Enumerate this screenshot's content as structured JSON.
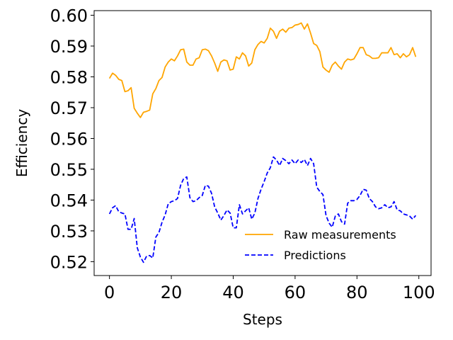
{
  "chart_data": {
    "type": "line",
    "title": "",
    "xlabel": "Steps",
    "ylabel": "Efficiency",
    "xlim": [
      -4.95,
      103.95
    ],
    "ylim": [
      0.5155,
      0.6015
    ],
    "xticks": [
      0,
      20,
      40,
      60,
      80,
      100
    ],
    "yticks": [
      0.52,
      0.53,
      0.54,
      0.55,
      0.56,
      0.57,
      0.58,
      0.59,
      0.6
    ],
    "xtick_labels": [
      "0",
      "20",
      "40",
      "60",
      "80",
      "100"
    ],
    "ytick_labels": [
      "0.52",
      "0.53",
      "0.54",
      "0.55",
      "0.56",
      "0.57",
      "0.58",
      "0.59",
      "0.60"
    ],
    "grid": false,
    "legend_position": "lower-right",
    "x": [
      0,
      1,
      2,
      3,
      4,
      5,
      6,
      7,
      8,
      9,
      10,
      11,
      12,
      13,
      14,
      15,
      16,
      17,
      18,
      19,
      20,
      21,
      22,
      23,
      24,
      25,
      26,
      27,
      28,
      29,
      30,
      31,
      32,
      33,
      34,
      35,
      36,
      37,
      38,
      39,
      40,
      41,
      42,
      43,
      44,
      45,
      46,
      47,
      48,
      49,
      50,
      51,
      52,
      53,
      54,
      55,
      56,
      57,
      58,
      59,
      60,
      61,
      62,
      63,
      64,
      65,
      66,
      67,
      68,
      69,
      70,
      71,
      72,
      73,
      74,
      75,
      76,
      77,
      78,
      79,
      80,
      81,
      82,
      83,
      84,
      85,
      86,
      87,
      88,
      89,
      90,
      91,
      92,
      93,
      94,
      95,
      96,
      97,
      98,
      99
    ],
    "series": [
      {
        "name": "Raw measurements",
        "color": "#FFA500",
        "style": "solid",
        "values": [
          0.5795,
          0.5812,
          0.5805,
          0.5792,
          0.5788,
          0.5752,
          0.5755,
          0.5765,
          0.5698,
          0.5682,
          0.5668,
          0.5685,
          0.5688,
          0.5692,
          0.5745,
          0.5762,
          0.5788,
          0.5798,
          0.5832,
          0.5848,
          0.5858,
          0.5852,
          0.5868,
          0.5888,
          0.589,
          0.5848,
          0.5838,
          0.5838,
          0.5858,
          0.5862,
          0.5888,
          0.589,
          0.5885,
          0.5868,
          0.5845,
          0.5818,
          0.5848,
          0.5855,
          0.5852,
          0.5822,
          0.5825,
          0.5865,
          0.5858,
          0.5878,
          0.5868,
          0.5835,
          0.5845,
          0.5888,
          0.5905,
          0.5915,
          0.591,
          0.5925,
          0.5958,
          0.5948,
          0.5925,
          0.5948,
          0.5955,
          0.5945,
          0.5958,
          0.596,
          0.5968,
          0.597,
          0.5975,
          0.5955,
          0.5972,
          0.5942,
          0.5908,
          0.5902,
          0.5882,
          0.5832,
          0.5822,
          0.5815,
          0.5838,
          0.5848,
          0.5835,
          0.5825,
          0.5848,
          0.5858,
          0.5855,
          0.5858,
          0.5875,
          0.5895,
          0.5895,
          0.5872,
          0.5868,
          0.586,
          0.586,
          0.5862,
          0.5878,
          0.5878,
          0.5878,
          0.5895,
          0.5872,
          0.5875,
          0.5862,
          0.5875,
          0.5865,
          0.5872,
          0.5895,
          0.5865
        ]
      },
      {
        "name": "Predictions",
        "color": "#0000FF",
        "style": "dashed",
        "values": [
          0.5355,
          0.5375,
          0.5382,
          0.5362,
          0.5358,
          0.5355,
          0.5305,
          0.5305,
          0.534,
          0.5245,
          0.5215,
          0.5198,
          0.5218,
          0.522,
          0.5212,
          0.528,
          0.5295,
          0.5328,
          0.5352,
          0.5388,
          0.5395,
          0.5398,
          0.5405,
          0.5448,
          0.547,
          0.5475,
          0.5408,
          0.5395,
          0.5398,
          0.5408,
          0.5415,
          0.5448,
          0.5445,
          0.5422,
          0.5378,
          0.5358,
          0.5335,
          0.535,
          0.5368,
          0.5358,
          0.531,
          0.531,
          0.5385,
          0.5355,
          0.5365,
          0.5375,
          0.5338,
          0.5358,
          0.5405,
          0.5435,
          0.546,
          0.5488,
          0.5505,
          0.554,
          0.553,
          0.5512,
          0.5535,
          0.5528,
          0.5518,
          0.553,
          0.5518,
          0.553,
          0.5522,
          0.5532,
          0.5512,
          0.5535,
          0.5518,
          0.5442,
          0.5428,
          0.5418,
          0.535,
          0.5325,
          0.5312,
          0.5348,
          0.5355,
          0.533,
          0.5322,
          0.539,
          0.5398,
          0.5398,
          0.5402,
          0.5415,
          0.5435,
          0.5432,
          0.5405,
          0.5395,
          0.5378,
          0.5372,
          0.5375,
          0.5385,
          0.5375,
          0.5378,
          0.5395,
          0.5368,
          0.5365,
          0.5355,
          0.5352,
          0.5348,
          0.5338,
          0.535
        ]
      }
    ]
  }
}
